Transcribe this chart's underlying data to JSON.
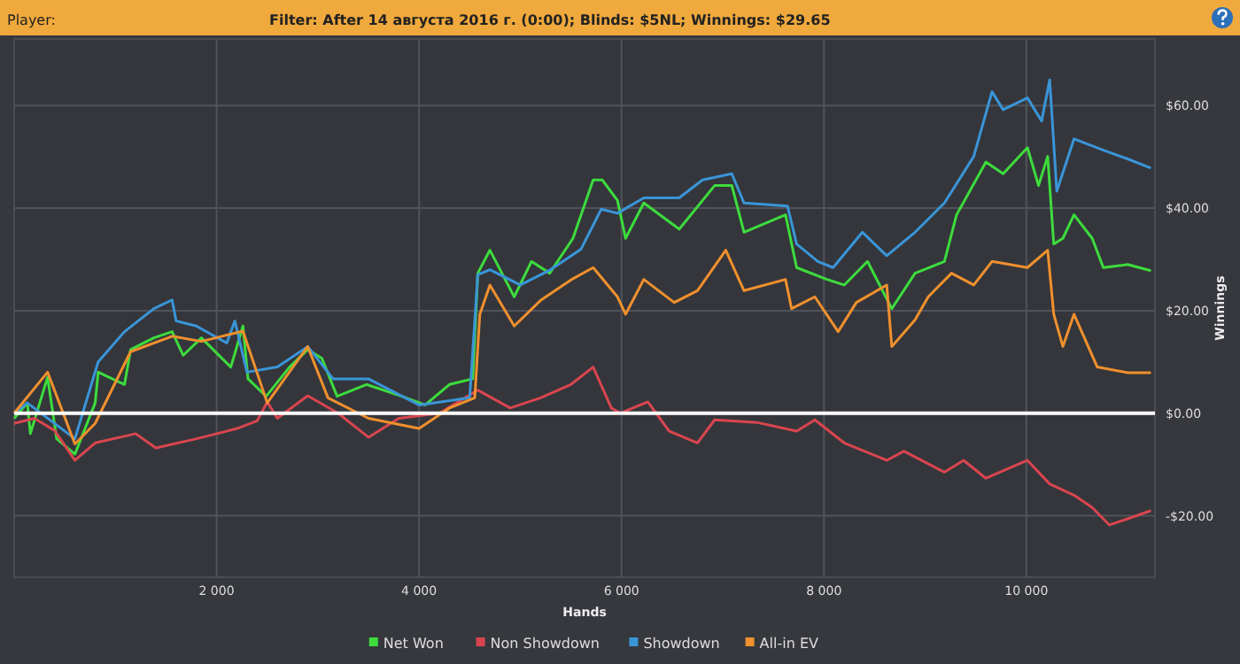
{
  "chart_data": {
    "type": "line",
    "title": "Filter: After 14 августа 2016 г. (0:00); Blinds: $5NL; Winnings: $29.65",
    "annotations": [
      "Player:"
    ],
    "xlabel": "Hands",
    "ylabel": "Winnings",
    "xlim": [
      0,
      11270
    ],
    "ylim": [
      -32,
      73
    ],
    "xticks": [
      {
        "value": 2000,
        "label": "2 000"
      },
      {
        "value": 4000,
        "label": "4 000"
      },
      {
        "value": 6000,
        "label": "6 000"
      },
      {
        "value": 8000,
        "label": "8 000"
      },
      {
        "value": 10000,
        "label": "10 000"
      }
    ],
    "yticks": [
      {
        "value": -20,
        "label": "-$20.00"
      },
      {
        "value": 0,
        "label": "$0.00"
      },
      {
        "value": 20,
        "label": "$20.00"
      },
      {
        "value": 40,
        "label": "$40.00"
      },
      {
        "value": 60,
        "label": "$60.00"
      }
    ],
    "grid": true,
    "legend": "bottom",
    "marker": "none",
    "line_style": "solid",
    "ref_lines": [
      {
        "axis": "y",
        "value": 0,
        "color": "#ffffff"
      }
    ],
    "series": [
      {
        "name": "Net Won",
        "color": "#3ddc3d",
        "x": [
          0,
          130,
          160,
          330,
          420,
          600,
          800,
          830,
          1090,
          1150,
          1380,
          1560,
          1670,
          1850,
          2140,
          2260,
          2310,
          2490,
          2720,
          2900,
          3040,
          3190,
          3480,
          3830,
          4060,
          4300,
          4530,
          4580,
          4700,
          4940,
          5110,
          5290,
          5520,
          5720,
          5810,
          5960,
          6040,
          6220,
          6570,
          6920,
          7090,
          7210,
          7620,
          7730,
          8030,
          8200,
          8430,
          8670,
          8900,
          9190,
          9310,
          9600,
          9770,
          10010,
          10120,
          10210,
          10270,
          10360,
          10470,
          10650,
          10760,
          11000,
          11230
        ],
        "values": [
          -1,
          2,
          -4,
          7,
          -5,
          -8,
          2,
          8,
          5.6,
          12.4,
          14.7,
          15.9,
          11.3,
          14.7,
          9,
          17,
          6.7,
          3.3,
          9,
          12.4,
          10.7,
          3.3,
          5.6,
          3.3,
          1.6,
          5.6,
          6.7,
          27.3,
          31.8,
          22.7,
          29.6,
          27.3,
          34.1,
          45.5,
          45.5,
          41.5,
          34.1,
          41,
          35.9,
          44.4,
          44.4,
          35.3,
          38.7,
          28.4,
          26.1,
          25,
          29.6,
          20.4,
          27.3,
          29.6,
          38.7,
          49,
          46.7,
          51.8,
          44.4,
          50.1,
          33,
          34.1,
          38.7,
          34.1,
          28.4,
          29,
          27.8
        ]
      },
      {
        "name": "Non Showdown",
        "color": "#d9454f",
        "x": [
          0,
          200,
          400,
          600,
          800,
          1200,
          1400,
          1800,
          2200,
          2400,
          2500,
          2600,
          2900,
          3200,
          3500,
          3800,
          4200,
          4580,
          4900,
          5200,
          5500,
          5720,
          5900,
          5990,
          6260,
          6470,
          6750,
          6920,
          7340,
          7730,
          7910,
          8200,
          8620,
          8790,
          9190,
          9380,
          9600,
          10010,
          10230,
          10470,
          10650,
          10820,
          11000,
          11230
        ],
        "values": [
          -2,
          -1,
          -3.4,
          -9.2,
          -5.8,
          -4,
          -6.8,
          -5,
          -3,
          -1.5,
          2.2,
          -1,
          3.4,
          0,
          -4.7,
          -1,
          0,
          4.5,
          1,
          3,
          5.6,
          9,
          1,
          0,
          2.2,
          -3.5,
          -5.8,
          -1.3,
          -1.8,
          -3.5,
          -1.3,
          -5.8,
          -9.2,
          -7.4,
          -11.5,
          -9.2,
          -12.7,
          -9.2,
          -13.8,
          -16,
          -18.4,
          -21.8,
          -20.6,
          -19
        ]
      },
      {
        "name": "Showdown",
        "color": "#3a95d8",
        "x": [
          0,
          130,
          600,
          830,
          1090,
          1380,
          1560,
          1600,
          1800,
          2100,
          2180,
          2300,
          2600,
          2900,
          3150,
          3500,
          4000,
          4500,
          4580,
          4700,
          5000,
          5300,
          5600,
          5800,
          5960,
          6220,
          6570,
          6800,
          7090,
          7210,
          7640,
          7730,
          7940,
          8090,
          8380,
          8620,
          8900,
          9190,
          9480,
          9660,
          9770,
          10010,
          10150,
          10230,
          10300,
          10470,
          10760,
          11000,
          11230
        ],
        "values": [
          0,
          2,
          -5,
          10,
          15.9,
          20.4,
          22.1,
          18,
          17,
          13.7,
          18,
          8,
          9,
          13,
          6.7,
          6.7,
          1.6,
          3,
          27,
          28,
          25,
          28,
          32,
          39.8,
          39,
          42,
          42,
          45.5,
          46.7,
          41,
          40.4,
          33,
          29.6,
          28.4,
          35.3,
          30.7,
          35.3,
          41,
          50.1,
          62.7,
          59.2,
          61.5,
          57,
          65,
          43.3,
          53.5,
          51.3,
          49.6,
          47.8
        ]
      },
      {
        "name": "All-in EV",
        "color": "#f0902e",
        "x": [
          0,
          330,
          600,
          800,
          1150,
          1560,
          1850,
          2260,
          2500,
          2900,
          3100,
          3500,
          4000,
          4300,
          4550,
          4600,
          4700,
          4940,
          5200,
          5500,
          5720,
          5960,
          6040,
          6220,
          6520,
          6750,
          7030,
          7210,
          7620,
          7680,
          7910,
          8140,
          8320,
          8620,
          8670,
          8900,
          9030,
          9260,
          9480,
          9660,
          10010,
          10210,
          10270,
          10360,
          10470,
          10700,
          11000,
          11230
        ],
        "values": [
          0,
          8,
          -6,
          -2,
          12,
          15,
          14,
          16,
          2,
          13,
          3,
          -1,
          -3,
          1,
          3,
          19.3,
          25,
          17,
          22,
          26,
          28.4,
          22.7,
          19.3,
          26.1,
          21.6,
          23.9,
          31.8,
          23.9,
          26.1,
          20.4,
          22.7,
          15.9,
          21.6,
          25,
          13,
          18.2,
          22.7,
          27.3,
          25,
          29.6,
          28.4,
          31.8,
          19.3,
          13,
          19.3,
          9,
          7.9,
          7.9
        ]
      }
    ]
  }
}
